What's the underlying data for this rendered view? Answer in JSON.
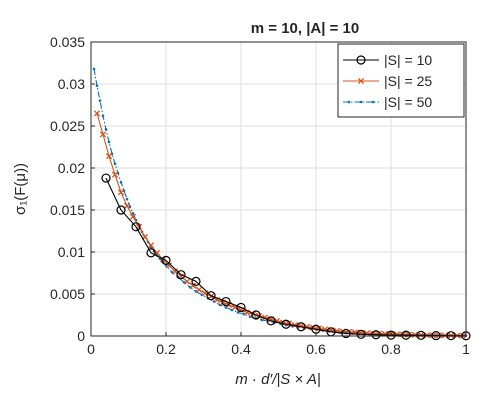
{
  "chart_data": {
    "type": "line",
    "title": "m = 10, |A| = 10",
    "xlabel": "m · d′/|S × A|",
    "ylabel": "σ₁(F(μ))",
    "xlim": [
      0,
      1
    ],
    "ylim": [
      0,
      0.035
    ],
    "xticks": [
      0,
      0.2,
      0.4,
      0.6,
      0.8,
      1
    ],
    "xtick_labels": [
      "0",
      "0.2",
      "0.4",
      "0.6",
      "0.8",
      "1"
    ],
    "yticks": [
      0,
      0.005,
      0.01,
      0.015,
      0.02,
      0.025,
      0.03,
      0.035
    ],
    "ytick_labels": [
      "0",
      "0.005",
      "0.01",
      "0.015",
      "0.02",
      "0.025",
      "0.03",
      "0.035"
    ],
    "grid": true,
    "legend_position": "top-right",
    "series": [
      {
        "name": "|S| = 10",
        "color": "#000000",
        "marker": "circle",
        "line": "solid",
        "x": [
          0.04,
          0.08,
          0.12,
          0.16,
          0.2,
          0.24,
          0.28,
          0.32,
          0.36,
          0.4,
          0.44,
          0.48,
          0.52,
          0.56,
          0.6,
          0.64,
          0.68,
          0.72,
          0.76,
          0.8,
          0.84,
          0.88,
          0.92,
          0.96,
          1.0
        ],
        "y": [
          0.0188,
          0.015,
          0.013,
          0.0099,
          0.009,
          0.0073,
          0.0065,
          0.0048,
          0.0041,
          0.0034,
          0.0025,
          0.0018,
          0.0014,
          0.0011,
          0.0008,
          0.0005,
          0.0003,
          0.0002,
          0.00015,
          0.0001,
          0.0001,
          8e-05,
          5e-05,
          4e-05,
          3e-05
        ]
      },
      {
        "name": "|S| = 25",
        "color": "#d95319",
        "marker": "x",
        "line": "solid",
        "x": [
          0.016,
          0.032,
          0.048,
          0.064,
          0.08,
          0.096,
          0.112,
          0.128,
          0.144,
          0.16,
          0.176,
          0.192,
          0.208,
          0.224,
          0.24,
          0.256,
          0.272,
          0.288,
          0.304,
          0.32,
          0.336,
          0.352,
          0.368,
          0.384,
          0.4,
          0.416,
          0.432,
          0.448,
          0.464,
          0.48,
          0.496,
          0.512,
          0.528,
          0.544,
          0.56,
          0.576,
          0.592,
          0.608,
          0.624,
          0.64,
          0.656,
          0.672,
          0.688,
          0.704,
          0.72,
          0.736,
          0.752,
          0.768,
          0.784,
          0.8,
          0.816,
          0.832,
          0.848,
          0.864,
          0.88,
          0.896,
          0.912,
          0.928,
          0.944,
          0.96,
          0.976,
          0.992
        ],
        "y": [
          0.0265,
          0.024,
          0.0214,
          0.0192,
          0.0171,
          0.0155,
          0.0142,
          0.013,
          0.0118,
          0.0108,
          0.0099,
          0.0091,
          0.0084,
          0.0077,
          0.0071,
          0.0065,
          0.006,
          0.0055,
          0.0051,
          0.0047,
          0.0043,
          0.004,
          0.0037,
          0.0034,
          0.0031,
          0.0028,
          0.0026,
          0.0024,
          0.0022,
          0.002,
          0.0018,
          0.0016,
          0.0015,
          0.0013,
          0.0012,
          0.0011,
          0.001,
          0.0009,
          0.0008,
          0.0007,
          0.0006,
          0.00055,
          0.0005,
          0.00045,
          0.0004,
          0.00035,
          0.0003,
          0.00028,
          0.00025,
          0.00022,
          0.0002,
          0.00018,
          0.00016,
          0.00014,
          0.00012,
          0.0001,
          9e-05,
          8e-05,
          7e-05,
          6e-05,
          5e-05,
          4e-05
        ]
      },
      {
        "name": "|S| = 50",
        "color": "#0072bd",
        "marker": "dot",
        "line": "dashdot",
        "x": [
          0.008,
          0.016,
          0.024,
          0.032,
          0.04,
          0.048,
          0.056,
          0.064,
          0.072,
          0.08,
          0.088,
          0.096,
          0.104,
          0.112,
          0.12,
          0.128,
          0.136,
          0.144,
          0.152,
          0.16,
          0.168,
          0.176,
          0.184,
          0.192,
          0.2,
          0.216,
          0.232,
          0.248,
          0.264,
          0.28,
          0.296,
          0.312,
          0.328,
          0.344,
          0.36,
          0.376,
          0.392,
          0.408,
          0.424,
          0.44,
          0.456,
          0.472,
          0.488,
          0.504,
          0.52,
          0.536,
          0.552,
          0.568,
          0.584,
          0.6,
          0.616,
          0.632,
          0.648,
          0.664,
          0.68,
          0.696,
          0.712,
          0.728,
          0.744,
          0.76,
          0.776,
          0.792,
          0.808,
          0.824,
          0.84,
          0.856,
          0.872,
          0.888,
          0.904,
          0.92,
          0.936,
          0.952,
          0.968,
          0.984,
          1.0
        ],
        "y": [
          0.0318,
          0.0298,
          0.028,
          0.0262,
          0.0246,
          0.0231,
          0.0217,
          0.0205,
          0.0194,
          0.0183,
          0.0173,
          0.0163,
          0.0154,
          0.0146,
          0.0138,
          0.0131,
          0.0124,
          0.0118,
          0.0112,
          0.0106,
          0.0101,
          0.0096,
          0.0092,
          0.0088,
          0.0084,
          0.0076,
          0.007,
          0.0064,
          0.0058,
          0.0053,
          0.0049,
          0.0045,
          0.0041,
          0.0037,
          0.0034,
          0.0031,
          0.0028,
          0.0026,
          0.0023,
          0.0021,
          0.0019,
          0.0018,
          0.0016,
          0.0015,
          0.0013,
          0.0012,
          0.0011,
          0.001,
          0.0009,
          0.0008,
          0.0007,
          0.00065,
          0.0006,
          0.00052,
          0.00046,
          0.0004,
          0.00036,
          0.00032,
          0.00028,
          0.00025,
          0.00022,
          0.0002,
          0.00018,
          0.00016,
          0.00014,
          0.00012,
          0.0001,
          9e-05,
          8e-05,
          7e-05,
          6e-05,
          5e-05,
          4e-05,
          3e-05,
          3e-05
        ]
      }
    ]
  }
}
